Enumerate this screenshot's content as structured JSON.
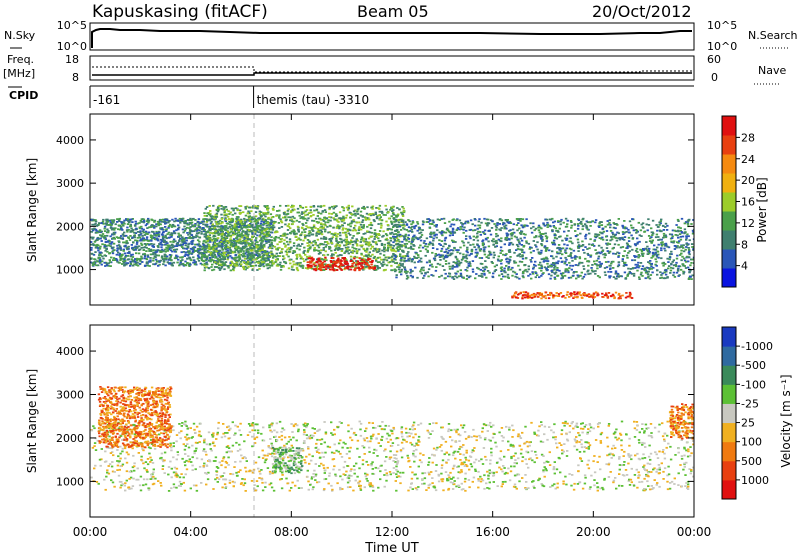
{
  "header": {
    "station": "Kapuskasing (fitACF)",
    "beam": "Beam 05",
    "date": "20/Oct/2012"
  },
  "chart_data": [
    {
      "type": "line",
      "name": "noise-panel",
      "left_label": "N.Sky",
      "right_label": "N.Search",
      "left_ticks": [
        "10^5",
        "10^0"
      ],
      "right_ticks": [
        "10^5",
        "10^0"
      ]
    },
    {
      "type": "line",
      "name": "frequency-nave-panel",
      "left_label": "Freq.",
      "left_unit": "[MHz]",
      "right_label": "Nave",
      "left_ticks": [
        "18",
        "8"
      ],
      "right_ticks": [
        "60",
        "0"
      ]
    },
    {
      "type": "table",
      "name": "cpid-panel",
      "label": "CPID",
      "segments": [
        {
          "start_hour": 0.0,
          "text": "-161"
        },
        {
          "start_hour": 6.5,
          "text": "themis (tau) -3310"
        }
      ]
    },
    {
      "type": "heatmap",
      "name": "power-panel",
      "ylabel": "Slant Range [km]",
      "ylim": [
        180,
        4600
      ],
      "yticks": [
        1000,
        2000,
        3000,
        4000
      ],
      "colorbar_label": "Power [dB]",
      "colorbar_ticks": [
        "4",
        "8",
        "12",
        "16",
        "20",
        "24",
        "28"
      ],
      "colors": [
        "#0a14e0",
        "#2a56b8",
        "#3f7f6f",
        "#4aa04a",
        "#9ccc2a",
        "#f0b010",
        "#f58a10",
        "#e84010",
        "#e01010"
      ],
      "regions": [
        {
          "x0": 0.0,
          "x1": 7.2,
          "y0": 1100,
          "y1": 2200,
          "level": 2
        },
        {
          "x0": 4.5,
          "x1": 12.5,
          "y0": 1000,
          "y1": 2500,
          "level": 3
        },
        {
          "x0": 8.6,
          "x1": 11.3,
          "y0": 1000,
          "y1": 1300,
          "level": 8
        },
        {
          "x0": 12.0,
          "x1": 24.0,
          "y0": 800,
          "y1": 2200,
          "level": 2
        },
        {
          "x0": 16.7,
          "x1": 21.5,
          "y0": 350,
          "y1": 500,
          "level": 7
        }
      ]
    },
    {
      "type": "heatmap",
      "name": "velocity-panel",
      "ylabel": "Slant Range [km]",
      "xlabel": "Time UT",
      "ylim": [
        180,
        4600
      ],
      "yticks": [
        1000,
        2000,
        3000,
        4000
      ],
      "xticks": [
        "00:00",
        "04:00",
        "08:00",
        "12:00",
        "16:00",
        "20:00",
        "00:00"
      ],
      "colorbar_label": "Velocity [m s⁻¹]",
      "colorbar_ticks": [
        "1000",
        "500",
        "100",
        "25",
        "-25",
        "-100",
        "-500",
        "-1000"
      ],
      "colors": [
        "#1a3ac0",
        "#2f6aa0",
        "#3a8a5a",
        "#5cc035",
        "#c8c8c0",
        "#f0b020",
        "#f07a10",
        "#e84010",
        "#e01010"
      ],
      "regions": [
        {
          "x0": 0.0,
          "x1": 24.0,
          "y0": 800,
          "y1": 2400,
          "level": 4
        },
        {
          "x0": 0.3,
          "x1": 3.2,
          "y0": 1800,
          "y1": 3200,
          "level": 6
        },
        {
          "x0": 7.2,
          "x1": 8.4,
          "y0": 1200,
          "y1": 1800,
          "level": 3
        },
        {
          "x0": 23.0,
          "x1": 24.0,
          "y0": 2000,
          "y1": 2800,
          "level": 6
        }
      ]
    }
  ]
}
